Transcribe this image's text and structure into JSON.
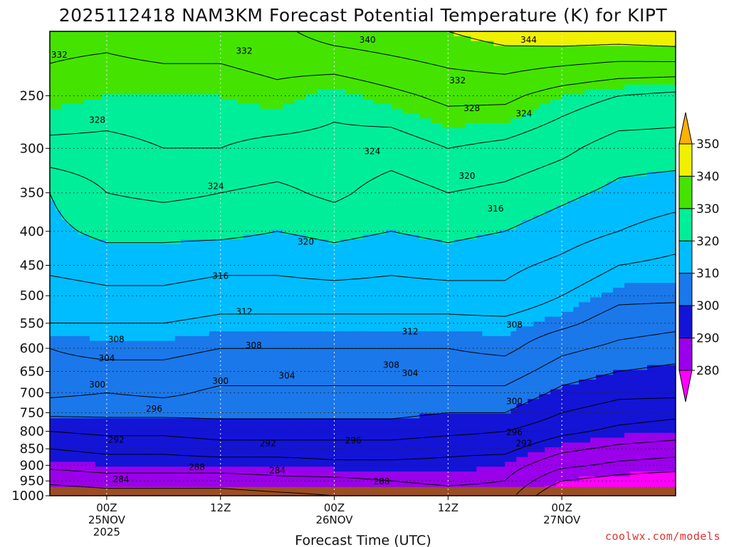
{
  "chart_data": {
    "type": "heatmap",
    "title": "2025112418 NAM3KM Forecast Potential Temperature (K) for KIPT",
    "xlabel": "Forecast Time (UTC)",
    "ylabel": "Pressure (hPa)",
    "credit": "coolwx.com/models",
    "x_range_hours": [
      -6,
      60
    ],
    "y_range_hpa": [
      200,
      1000
    ],
    "x_ticks": [
      {
        "hour": 0,
        "lines": [
          "00Z",
          "25NOV",
          "2025"
        ]
      },
      {
        "hour": 12,
        "lines": [
          "12Z"
        ]
      },
      {
        "hour": 24,
        "lines": [
          "00Z",
          "26NOV"
        ]
      },
      {
        "hour": 36,
        "lines": [
          "12Z"
        ]
      },
      {
        "hour": 48,
        "lines": [
          "00Z",
          "27NOV"
        ]
      }
    ],
    "y_ticks": [
      250,
      300,
      350,
      400,
      450,
      500,
      550,
      600,
      650,
      700,
      750,
      800,
      850,
      900,
      950,
      1000
    ],
    "colorbar": {
      "labels": [
        "280",
        "290",
        "300",
        "310",
        "320",
        "330",
        "340",
        "350"
      ],
      "bins": [
        {
          "from": 270,
          "to": 280,
          "color": "#ff00ff"
        },
        {
          "from": 280,
          "to": 290,
          "color": "#9a00ea"
        },
        {
          "from": 290,
          "to": 300,
          "color": "#1414d6"
        },
        {
          "from": 300,
          "to": 310,
          "color": "#1a78ea"
        },
        {
          "from": 310,
          "to": 320,
          "color": "#00bdff"
        },
        {
          "from": 320,
          "to": 330,
          "color": "#00ee9a"
        },
        {
          "from": 330,
          "to": 340,
          "color": "#44e400"
        },
        {
          "from": 340,
          "to": 350,
          "color": "#f0f000"
        },
        {
          "from": 350,
          "to": 360,
          "color": "#ffb000"
        }
      ]
    },
    "ground_color": "#9b4e22",
    "ground_pressure_hpa": 970,
    "contours_k": [
      280,
      284,
      288,
      292,
      296,
      300,
      304,
      308,
      312,
      316,
      320,
      324,
      328,
      332,
      336,
      340,
      344,
      348
    ],
    "pressure_levels_hpa": [
      1000,
      950,
      900,
      850,
      800,
      750,
      700,
      650,
      600,
      550,
      500,
      450,
      400,
      350,
      300,
      250,
      200
    ],
    "series": [
      {
        "name": "f-6h",
        "hour": -6,
        "theta_k": [
          281,
          285,
          289,
          292,
          296,
          301,
          305,
          307,
          308,
          312,
          314,
          317,
          319,
          320,
          327,
          331,
          333
        ]
      },
      {
        "name": "f0h",
        "hour": 0,
        "theta_k": [
          282,
          286,
          290,
          293,
          297,
          301,
          304,
          307,
          309,
          312,
          315,
          318,
          321,
          324,
          327,
          330,
          333
        ]
      },
      {
        "name": "f6h",
        "hour": 6,
        "theta_k": [
          282,
          286,
          290,
          293,
          297,
          301,
          305,
          307,
          309,
          312,
          315,
          318,
          321,
          325,
          328,
          330,
          334
        ]
      },
      {
        "name": "f12h",
        "hour": 12,
        "theta_k": [
          282,
          286,
          290,
          294,
          298,
          301,
          303,
          306,
          308,
          311,
          314,
          317,
          321,
          324,
          328,
          330,
          334
        ]
      },
      {
        "name": "f18h",
        "hour": 18,
        "theta_k": [
          283,
          287,
          290,
          294,
          298,
          301,
          303,
          306,
          308,
          311,
          314,
          317,
          320,
          323,
          327,
          331,
          335
        ]
      },
      {
        "name": "f24h",
        "hour": 24,
        "theta_k": [
          284,
          287,
          291,
          294,
          298,
          301,
          303,
          306,
          308,
          311,
          314,
          318,
          321,
          325,
          327,
          329,
          338
        ]
      },
      {
        "name": "f30h",
        "hour": 30,
        "theta_k": [
          285,
          288,
          291,
          294,
          298,
          301,
          303,
          306,
          308,
          311,
          314,
          317,
          320,
          322,
          326,
          331,
          339
        ]
      },
      {
        "name": "f36h",
        "hour": 36,
        "theta_k": [
          286,
          289,
          291,
          293,
          297,
          300,
          303,
          306,
          308,
          311,
          314,
          318,
          321,
          324,
          328,
          333,
          340
        ]
      },
      {
        "name": "f42h",
        "hour": 42,
        "theta_k": [
          286,
          288,
          290,
          293,
          296,
          300,
          303,
          306,
          309,
          311,
          315,
          317,
          320,
          323,
          327,
          333,
          342
        ]
      },
      {
        "name": "f48h",
        "hour": 48,
        "theta_k": [
          275,
          280,
          285,
          289,
          293,
          296,
          299,
          302,
          305,
          309,
          312,
          315,
          318,
          321,
          325,
          330,
          343
        ]
      },
      {
        "name": "f54h",
        "hour": 54,
        "theta_k": [
          273,
          278,
          283,
          287,
          291,
          294,
          297,
          300,
          303,
          306,
          309,
          312,
          316,
          319,
          322,
          328,
          343
        ]
      },
      {
        "name": "f60h",
        "hour": 60,
        "theta_k": [
          272,
          277,
          282,
          286,
          290,
          293,
          297,
          299,
          302,
          305,
          309,
          311,
          314,
          318,
          322,
          327,
          344
        ]
      }
    ],
    "annotations": [
      {
        "text": "332",
        "hour": -5,
        "p": 217
      },
      {
        "text": "328",
        "hour": -1,
        "p": 272
      },
      {
        "text": "324",
        "hour": 11.5,
        "p": 342
      },
      {
        "text": "320",
        "hour": 21,
        "p": 415
      },
      {
        "text": "316",
        "hour": 12,
        "p": 467
      },
      {
        "text": "312",
        "hour": 14.5,
        "p": 528
      },
      {
        "text": "308",
        "hour": 1,
        "p": 582
      },
      {
        "text": "308",
        "hour": 15.5,
        "p": 594
      },
      {
        "text": "304",
        "hour": 0,
        "p": 621
      },
      {
        "text": "304",
        "hour": 19,
        "p": 660
      },
      {
        "text": "300",
        "hour": -1,
        "p": 680
      },
      {
        "text": "300",
        "hour": 12,
        "p": 672
      },
      {
        "text": "296",
        "hour": 5,
        "p": 740
      },
      {
        "text": "292",
        "hour": 1,
        "p": 824
      },
      {
        "text": "292",
        "hour": 17,
        "p": 834
      },
      {
        "text": "296",
        "hour": 26,
        "p": 826
      },
      {
        "text": "288",
        "hour": 9.5,
        "p": 906
      },
      {
        "text": "284",
        "hour": 1.5,
        "p": 945
      },
      {
        "text": "284",
        "hour": 18,
        "p": 916
      },
      {
        "text": "288",
        "hour": 29,
        "p": 952
      },
      {
        "text": "308",
        "hour": 30,
        "p": 636
      },
      {
        "text": "304",
        "hour": 32,
        "p": 654
      },
      {
        "text": "312",
        "hour": 32,
        "p": 566
      },
      {
        "text": "300",
        "hour": 43,
        "p": 721
      },
      {
        "text": "296",
        "hour": 43,
        "p": 803
      },
      {
        "text": "292",
        "hour": 44,
        "p": 834
      },
      {
        "text": "308",
        "hour": 43,
        "p": 553
      },
      {
        "text": "316",
        "hour": 41,
        "p": 370
      },
      {
        "text": "320",
        "hour": 38,
        "p": 330
      },
      {
        "text": "324",
        "hour": 28,
        "p": 303
      },
      {
        "text": "328",
        "hour": 38.5,
        "p": 261
      },
      {
        "text": "324",
        "hour": 44,
        "p": 266
      },
      {
        "text": "332",
        "hour": 37,
        "p": 237
      },
      {
        "text": "332",
        "hour": 14.5,
        "p": 214
      },
      {
        "text": "340",
        "hour": 27.5,
        "p": 206
      },
      {
        "text": "344",
        "hour": 44.5,
        "p": 206
      }
    ]
  }
}
